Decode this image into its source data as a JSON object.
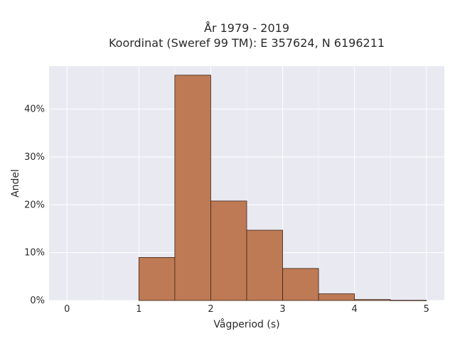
{
  "chart_data": {
    "type": "bar",
    "title_line1": "År 1979 - 2019",
    "title_line2": "Koordinat (Sweref 99 TM): E 357624, N 6196211",
    "xlabel": "Vågperiod (s)",
    "ylabel": "Andel",
    "xlim": [
      -0.25,
      5.25
    ],
    "ylim": [
      0,
      0.49
    ],
    "x_ticks": [
      0,
      1,
      2,
      3,
      4,
      5
    ],
    "x_tick_labels": [
      "0",
      "1",
      "2",
      "3",
      "4",
      "5"
    ],
    "y_ticks": [
      0,
      0.1,
      0.2,
      0.3,
      0.4
    ],
    "y_tick_labels": [
      "0%",
      "10%",
      "20%",
      "30%",
      "40%"
    ],
    "bins": [
      {
        "start": 1.0,
        "end": 1.5,
        "value": 0.09
      },
      {
        "start": 1.5,
        "end": 2.0,
        "value": 0.471
      },
      {
        "start": 2.0,
        "end": 2.5,
        "value": 0.208
      },
      {
        "start": 2.5,
        "end": 3.0,
        "value": 0.147
      },
      {
        "start": 3.0,
        "end": 3.5,
        "value": 0.067
      },
      {
        "start": 3.5,
        "end": 4.0,
        "value": 0.014
      },
      {
        "start": 4.0,
        "end": 4.5,
        "value": 0.002
      },
      {
        "start": 4.5,
        "end": 5.0,
        "value": 0.0005
      }
    ],
    "grid": true,
    "bar_color": "#bd7a55",
    "bar_edge_color": "#3d2418",
    "plot_bg_color": "#e9e9f1"
  }
}
